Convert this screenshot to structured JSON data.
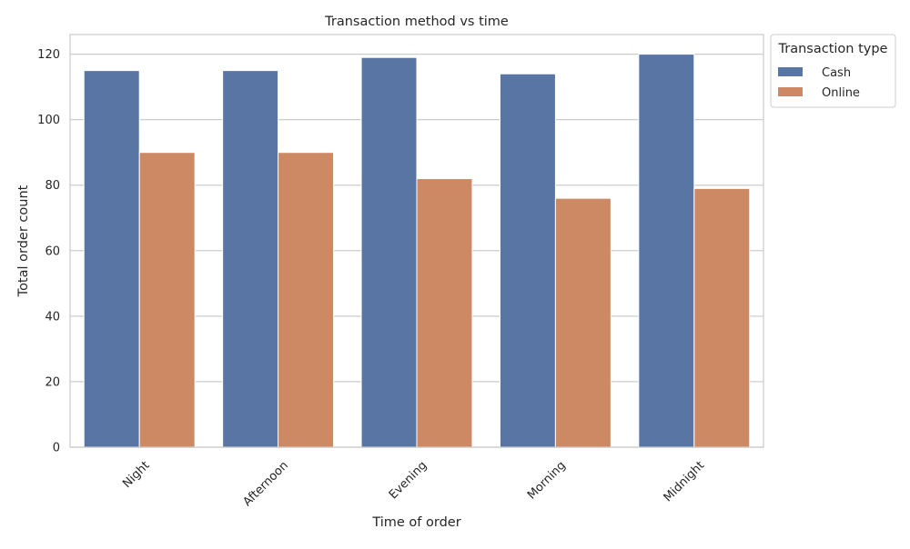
{
  "chart_data": {
    "type": "bar",
    "title": "Transaction method vs time",
    "xlabel": "Time of order",
    "ylabel": "Total order count",
    "categories": [
      "Night",
      "Afternoon",
      "Evening",
      "Morning",
      "Midnight"
    ],
    "series": [
      {
        "name": "Cash",
        "values": [
          115,
          115,
          119,
          114,
          120
        ]
      },
      {
        "name": "Online",
        "values": [
          90,
          90,
          82,
          76,
          79
        ]
      }
    ],
    "yticks": [
      0,
      20,
      40,
      60,
      80,
      100,
      120
    ],
    "ylim": [
      0,
      126
    ],
    "grid": true,
    "legend": {
      "title": "Transaction type",
      "placement": "outside top-right"
    },
    "colors": {
      "Cash": "#5875a4",
      "Online": "#cc8963",
      "grid": "#cccccc",
      "spine": "#cccccc"
    }
  }
}
